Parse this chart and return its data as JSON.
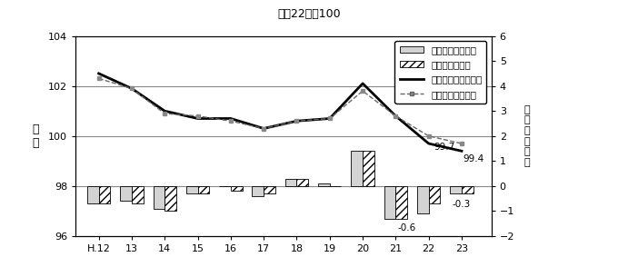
{
  "title": "平成22年＝100",
  "xlabel_years": [
    "H.12",
    "13",
    "14",
    "15",
    "16",
    "17",
    "18",
    "19",
    "20",
    "21",
    "22",
    "23"
  ],
  "x_vals": [
    0,
    1,
    2,
    3,
    4,
    5,
    6,
    7,
    8,
    9,
    10,
    11
  ],
  "ibaraki_index": [
    102.5,
    101.9,
    101.0,
    100.7,
    100.7,
    100.3,
    100.6,
    100.7,
    102.1,
    100.8,
    99.7,
    99.4
  ],
  "national_index": [
    102.3,
    101.9,
    100.9,
    100.8,
    100.6,
    100.3,
    100.6,
    100.7,
    101.8,
    100.8,
    100.0,
    99.7
  ],
  "ibaraki_yoy": [
    -0.7,
    -0.6,
    -0.9,
    -0.3,
    0.0,
    -0.4,
    0.3,
    0.1,
    1.4,
    -1.3,
    -1.1,
    -0.3
  ],
  "national_yoy": [
    -0.7,
    -0.7,
    -1.0,
    -0.3,
    -0.2,
    -0.3,
    0.3,
    0.0,
    1.4,
    -1.3,
    -0.7,
    -0.3
  ],
  "ylim_left": [
    96,
    104
  ],
  "ylim_right": [
    -2,
    6
  ],
  "yticks_left": [
    96,
    98,
    100,
    102,
    104
  ],
  "yticks_right": [
    -2,
    -1,
    0,
    1,
    2,
    3,
    4,
    5,
    6
  ],
  "bg_color": "#ffffff",
  "bar_ibaraki_color": "#d3d3d3",
  "bar_national_color": "#ffffff",
  "bar_hatch": "////",
  "line_ibaraki_color": "#000000",
  "line_national_color": "#666666",
  "hline_color": "#888888",
  "hline_lw": 0.8
}
